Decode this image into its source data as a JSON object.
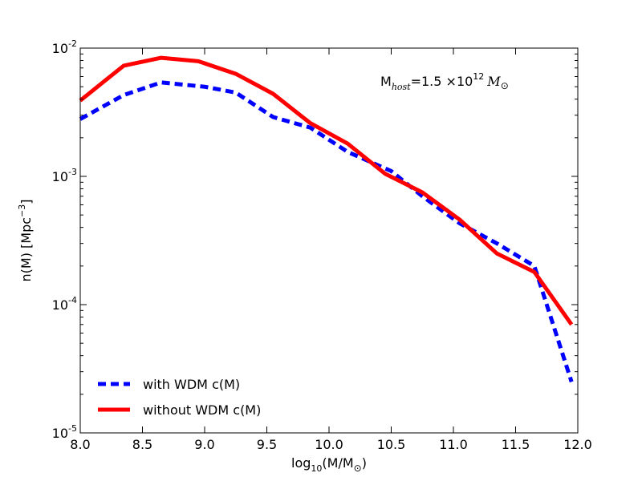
{
  "chart_data": {
    "type": "line",
    "x_scale": "linear",
    "y_scale": "log",
    "xlim": [
      8.0,
      12.0
    ],
    "ylim": [
      1e-05,
      0.01
    ],
    "x_ticks": [
      8.0,
      8.5,
      9.0,
      9.5,
      10.0,
      10.5,
      11.0,
      11.5,
      12.0
    ],
    "x_tick_labels": [
      "8.0",
      "8.5",
      "9.0",
      "9.5",
      "10.0",
      "10.5",
      "11.0",
      "11.5",
      "12.0"
    ],
    "y_ticks": [
      {
        "value": 0.01,
        "base": "10",
        "exp": "-2"
      },
      {
        "value": 0.001,
        "base": "10",
        "exp": "-3"
      },
      {
        "value": 0.0001,
        "base": "10",
        "exp": "-4"
      },
      {
        "value": 1e-05,
        "base": "10",
        "exp": "-5"
      }
    ],
    "xlabel": {
      "prefix": "log",
      "sub": "10",
      "mid": "(M/M",
      "sub2": "⊙",
      "suffix": ")"
    },
    "ylabel": {
      "prefix": "n(M) [Mpc",
      "sup": "−3",
      "suffix": "]"
    },
    "annotation": {
      "prefix": "M",
      "sub": "host",
      "mid": "=1.5 ×10",
      "sup": "12",
      "unit": "M",
      "unit_sub": "⊙"
    },
    "legend_position": "lower-left",
    "series": [
      {
        "name": "with WDM c(M)",
        "color": "#0000ff",
        "style": "dashed",
        "x": [
          8.0,
          8.35,
          8.65,
          9.0,
          9.25,
          9.55,
          9.85,
          10.15,
          10.5,
          10.75,
          11.05,
          11.35,
          11.65,
          11.95
        ],
        "y": [
          0.0028,
          0.0043,
          0.0054,
          0.005,
          0.0045,
          0.0029,
          0.0024,
          0.00155,
          0.0011,
          0.0007,
          0.00043,
          0.0003,
          0.0002,
          2.5e-05
        ]
      },
      {
        "name": "without WDM c(M)",
        "color": "#ff0000",
        "style": "solid",
        "x": [
          8.0,
          8.35,
          8.65,
          8.95,
          9.25,
          9.55,
          9.85,
          10.15,
          10.45,
          10.75,
          11.05,
          11.35,
          11.65,
          11.95
        ],
        "y": [
          0.0039,
          0.0073,
          0.0084,
          0.0079,
          0.0063,
          0.0044,
          0.0026,
          0.0018,
          0.00105,
          0.00075,
          0.00046,
          0.00025,
          0.00018,
          7e-05
        ]
      }
    ]
  }
}
